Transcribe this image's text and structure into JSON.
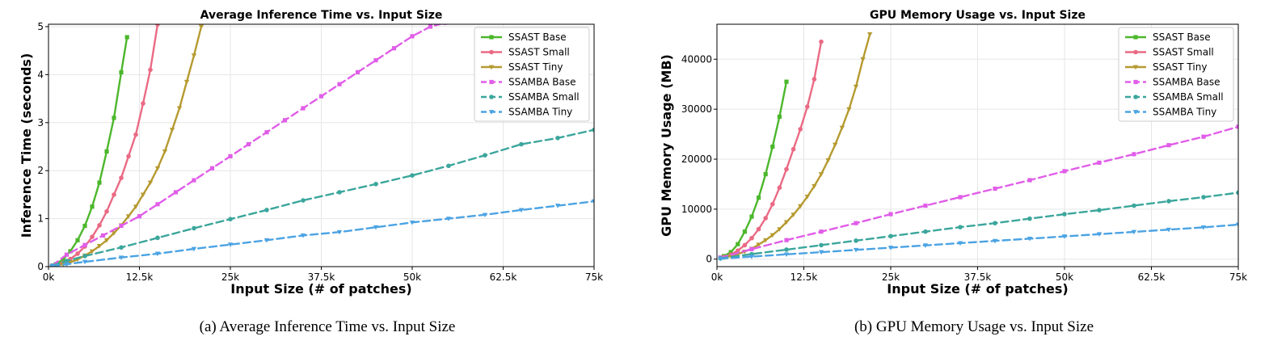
{
  "captions": [
    "(a) Average Inference Time vs. Input Size",
    "(b) GPU Memory Usage vs. Input Size"
  ],
  "legend_labels": [
    "SSAST Base",
    "SSAST Small",
    "SSAST Tiny",
    "SSAMBA Base",
    "SSAMBA Small",
    "SSAMBA Tiny"
  ],
  "series_colors": [
    "#4cb72c",
    "#ea6a84",
    "#b59a30",
    "#e05de8",
    "#3ba69c",
    "#4ba3e3"
  ],
  "chart_data": [
    {
      "type": "line",
      "title": "Average Inference Time vs. Input Size",
      "xlabel": "Input Size (# of  patches)",
      "ylabel": "Inference Time (seconds)",
      "xlim": [
        0,
        75000
      ],
      "ylim": [
        0,
        5.05
      ],
      "xticks": [
        0,
        12500,
        25000,
        37500,
        50000,
        62500,
        75000
      ],
      "xtick_labels": [
        "0k",
        "12.5k",
        "25k",
        "37.5k",
        "50k",
        "62.5k",
        "75k"
      ],
      "yticks": [
        0,
        1,
        2,
        3,
        4,
        5
      ],
      "ytick_labels": [
        "0",
        "1",
        "2",
        "3",
        "4",
        "5"
      ],
      "grid": true,
      "legend": "top-right",
      "series": [
        {
          "name": "SSAST Base",
          "x": [
            500,
            1000,
            2000,
            3000,
            4000,
            5000,
            6000,
            7000,
            8000,
            9000,
            10000,
            10800
          ],
          "y": [
            0.02,
            0.05,
            0.15,
            0.32,
            0.55,
            0.85,
            1.25,
            1.75,
            2.4,
            3.1,
            4.05,
            4.78
          ]
        },
        {
          "name": "SSAST Small",
          "x": [
            500,
            1000,
            2000,
            3000,
            4000,
            5000,
            6000,
            7000,
            8000,
            9000,
            10000,
            11000,
            12000,
            13000,
            14000,
            15000
          ],
          "y": [
            0.01,
            0.03,
            0.08,
            0.16,
            0.27,
            0.42,
            0.62,
            0.86,
            1.15,
            1.5,
            1.85,
            2.3,
            2.75,
            3.4,
            4.1,
            5.05
          ]
        },
        {
          "name": "SSAST Tiny",
          "x": [
            1000,
            2000,
            3000,
            4000,
            5000,
            6000,
            7000,
            8000,
            9000,
            10000,
            11000,
            12000,
            13000,
            14000,
            15000,
            16000,
            17000,
            18000,
            19000,
            20000,
            21000
          ],
          "y": [
            0.02,
            0.05,
            0.09,
            0.15,
            0.23,
            0.32,
            0.43,
            0.55,
            0.7,
            0.86,
            1.05,
            1.25,
            1.5,
            1.75,
            2.05,
            2.4,
            2.85,
            3.3,
            3.85,
            4.4,
            5.0
          ]
        },
        {
          "name": "SSAMBA Base",
          "x": [
            500,
            2500,
            5000,
            7500,
            10000,
            12500,
            15000,
            17500,
            20000,
            22500,
            25000,
            27500,
            30000,
            32500,
            35000,
            37500,
            40000,
            42500,
            45000,
            47500,
            50000,
            52500,
            54500
          ],
          "y": [
            0.02,
            0.25,
            0.45,
            0.65,
            0.85,
            1.05,
            1.3,
            1.55,
            1.8,
            2.05,
            2.3,
            2.55,
            2.8,
            3.05,
            3.3,
            3.55,
            3.8,
            4.05,
            4.3,
            4.55,
            4.8,
            5.0,
            5.08
          ]
        },
        {
          "name": "SSAMBA Small",
          "x": [
            500,
            2500,
            5000,
            10000,
            15000,
            20000,
            25000,
            30000,
            35000,
            40000,
            45000,
            50000,
            55000,
            60000,
            65000,
            70000,
            75000
          ],
          "y": [
            0.02,
            0.12,
            0.22,
            0.4,
            0.6,
            0.8,
            0.99,
            1.18,
            1.38,
            1.55,
            1.72,
            1.9,
            2.1,
            2.32,
            2.55,
            2.68,
            2.85
          ]
        },
        {
          "name": "SSAMBA Tiny",
          "x": [
            500,
            2500,
            5000,
            10000,
            15000,
            20000,
            25000,
            30000,
            35000,
            40000,
            45000,
            50000,
            55000,
            60000,
            65000,
            70000,
            75000
          ],
          "y": [
            0.01,
            0.05,
            0.1,
            0.19,
            0.27,
            0.37,
            0.46,
            0.55,
            0.65,
            0.72,
            0.82,
            0.92,
            1.0,
            1.08,
            1.18,
            1.27,
            1.36
          ]
        }
      ]
    },
    {
      "type": "line",
      "title": "GPU Memory Usage vs. Input Size",
      "xlabel": "Input Size (# of  patches)",
      "ylabel": "GPU Memory Usage (MB)",
      "xlim": [
        0,
        75000
      ],
      "ylim": [
        -1500,
        47000
      ],
      "xticks": [
        0,
        12500,
        25000,
        37500,
        50000,
        62500,
        75000
      ],
      "xtick_labels": [
        "0k",
        "12.5k",
        "25k",
        "37.5k",
        "50k",
        "62.5k",
        "75k"
      ],
      "yticks": [
        0,
        10000,
        20000,
        30000,
        40000
      ],
      "ytick_labels": [
        "0",
        "10000",
        "20000",
        "30000",
        "40000"
      ],
      "grid": true,
      "legend": "top-right",
      "series": [
        {
          "name": "SSAST Base",
          "x": [
            500,
            1000,
            2000,
            3000,
            4000,
            5000,
            6000,
            7000,
            8000,
            9000,
            10000
          ],
          "y": [
            300,
            600,
            1400,
            3000,
            5500,
            8500,
            12300,
            17000,
            22500,
            28500,
            35500
          ]
        },
        {
          "name": "SSAST Small",
          "x": [
            500,
            1000,
            2000,
            3000,
            4000,
            5000,
            6000,
            7000,
            8000,
            9000,
            10000,
            11000,
            12000,
            13000,
            14000,
            15000
          ],
          "y": [
            200,
            400,
            900,
            1700,
            2800,
            4200,
            6000,
            8200,
            11000,
            14300,
            18000,
            22000,
            26000,
            30500,
            36000,
            43500
          ]
        },
        {
          "name": "SSAST Tiny",
          "x": [
            1000,
            2000,
            3000,
            4000,
            5000,
            6000,
            7000,
            8000,
            9000,
            10000,
            11000,
            12000,
            13000,
            14000,
            15000,
            16000,
            17000,
            18000,
            19000,
            20000,
            21000,
            22000
          ],
          "y": [
            300,
            600,
            1000,
            1500,
            2100,
            2900,
            3800,
            4800,
            6000,
            7400,
            8900,
            10600,
            12500,
            14600,
            17000,
            19800,
            22900,
            26300,
            30000,
            34500,
            40000,
            45000
          ]
        },
        {
          "name": "SSAMBA Base",
          "x": [
            500,
            5000,
            10000,
            15000,
            20000,
            25000,
            30000,
            35000,
            40000,
            45000,
            50000,
            55000,
            60000,
            65000,
            70000,
            75000
          ],
          "y": [
            300,
            2000,
            3800,
            5500,
            7200,
            9000,
            10700,
            12400,
            14100,
            15800,
            17600,
            19300,
            21000,
            22800,
            24500,
            26500
          ]
        },
        {
          "name": "SSAMBA Small",
          "x": [
            500,
            5000,
            10000,
            15000,
            20000,
            25000,
            30000,
            35000,
            40000,
            45000,
            50000,
            55000,
            60000,
            65000,
            70000,
            75000
          ],
          "y": [
            150,
            1000,
            1900,
            2800,
            3700,
            4600,
            5500,
            6400,
            7200,
            8100,
            9000,
            9800,
            10700,
            11600,
            12400,
            13300
          ]
        },
        {
          "name": "SSAMBA Tiny",
          "x": [
            500,
            5000,
            10000,
            15000,
            20000,
            25000,
            30000,
            35000,
            40000,
            45000,
            50000,
            55000,
            60000,
            65000,
            70000,
            75000
          ],
          "y": [
            80,
            500,
            950,
            1400,
            1850,
            2300,
            2750,
            3200,
            3650,
            4100,
            4550,
            5000,
            5450,
            5900,
            6350,
            6900
          ]
        }
      ]
    }
  ]
}
